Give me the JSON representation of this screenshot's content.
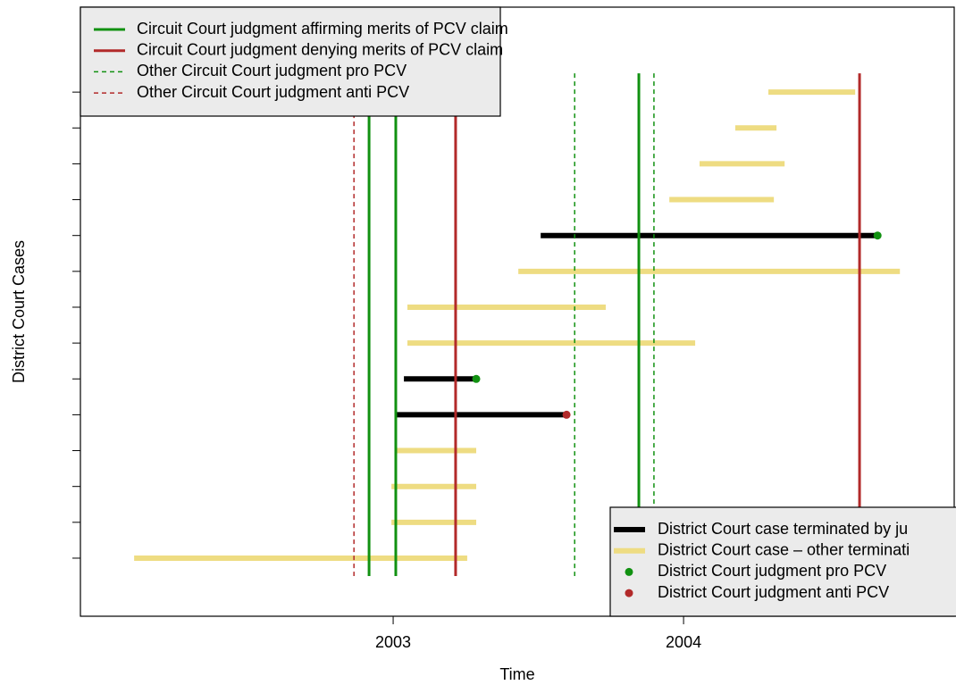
{
  "chart_data": {
    "type": "timeline",
    "xlabel": "Time",
    "ylabel": "District Court Cases",
    "xlim": [
      2001.923,
      2004.932
    ],
    "xticks": [
      2003,
      2004
    ],
    "ylim": [
      -0.62,
      16.37
    ],
    "yticks": [
      1,
      2,
      3,
      4,
      5,
      6,
      7,
      8,
      9,
      10,
      11,
      12,
      13,
      14
    ],
    "judgment_series": [
      {
        "name": "Circuit Court judgment affirming merits of PCV claim",
        "color": "#119111",
        "dashed": false,
        "x": [
          2002.917,
          2003.009,
          2003.846
        ]
      },
      {
        "name": "Circuit Court judgment denying merits of PCV claim",
        "color": "#b22a2a",
        "dashed": false,
        "x": [
          2003.215,
          2004.606
        ]
      },
      {
        "name": "Other Circuit Court judgment pro PCV",
        "color": "#119111",
        "dashed": true,
        "x": [
          2003.625,
          2003.898
        ]
      },
      {
        "name": "Other Circuit Court judgment anti PCV",
        "color": "#b22a2a",
        "dashed": true,
        "x": [
          2002.865
        ]
      }
    ],
    "case_series": [
      {
        "name": "District Court case terminated by ju",
        "color": "#000000",
        "rows": [
          5,
          6,
          10
        ],
        "starts": [
          2003.009,
          2003.037,
          2003.508
        ],
        "ends": [
          2003.597,
          2003.286,
          2004.668
        ]
      },
      {
        "name": "District Court case – other terminati",
        "color": "#eedc82",
        "rows": [
          1,
          2,
          3,
          4,
          7,
          8,
          9,
          11,
          12,
          13,
          14
        ],
        "starts": [
          2002.108,
          2002.994,
          2002.994,
          2003.009,
          2003.049,
          2003.049,
          2003.431,
          2003.951,
          2004.055,
          2004.178,
          2004.292
        ],
        "ends": [
          2003.255,
          2003.286,
          2003.286,
          2003.286,
          2004.04,
          2003.732,
          2004.745,
          2004.311,
          2004.348,
          2004.32,
          2004.591
        ]
      }
    ],
    "point_series": [
      {
        "name": "District Court judgment pro PCV",
        "color": "#119111",
        "x": [
          2003.286,
          2004.668
        ],
        "y": [
          6,
          10
        ]
      },
      {
        "name": "District Court judgment anti PCV",
        "color": "#b22a2a",
        "x": [
          2003.597
        ],
        "y": [
          5
        ]
      }
    ]
  }
}
